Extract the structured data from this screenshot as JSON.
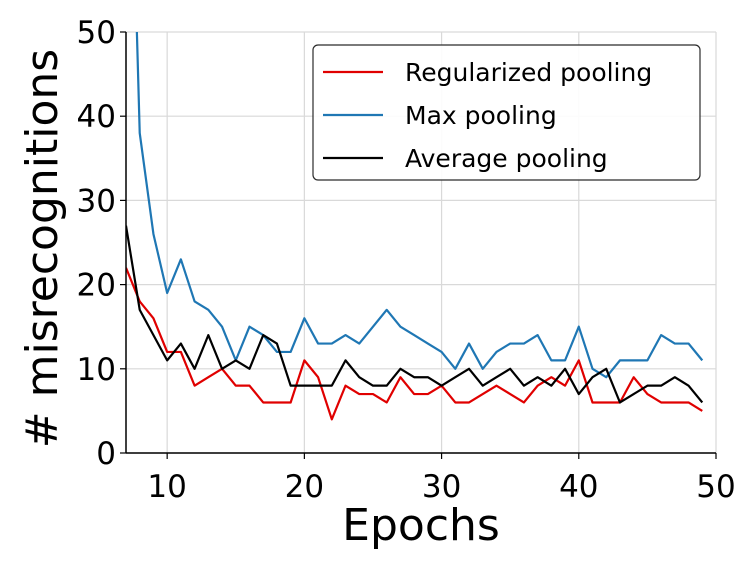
{
  "chart_data": {
    "type": "line",
    "xlabel": "Epochs",
    "ylabel": "# misrecognitions",
    "xlim": [
      7,
      50
    ],
    "ylim": [
      0,
      50
    ],
    "xticks": [
      10,
      20,
      30,
      40,
      50
    ],
    "yticks": [
      0,
      10,
      20,
      30,
      40,
      50
    ],
    "grid": true,
    "legend_position": "top-right",
    "x": [
      7,
      8,
      9,
      10,
      11,
      12,
      13,
      14,
      15,
      16,
      17,
      18,
      19,
      20,
      21,
      22,
      23,
      24,
      25,
      26,
      27,
      28,
      29,
      30,
      31,
      32,
      33,
      34,
      35,
      36,
      37,
      38,
      39,
      40,
      41,
      42,
      43,
      44,
      45,
      46,
      47,
      48,
      49
    ],
    "series": [
      {
        "name": "Regularized pooling",
        "color": "#e00000",
        "values": [
          22,
          18,
          16,
          12,
          12,
          8,
          9,
          10,
          8,
          8,
          6,
          6,
          6,
          11,
          9,
          4,
          8,
          7,
          7,
          6,
          9,
          7,
          7,
          8,
          6,
          6,
          7,
          8,
          7,
          6,
          8,
          9,
          8,
          11,
          6,
          6,
          6,
          9,
          7,
          6,
          6,
          6,
          5
        ]
      },
      {
        "name": "Max pooling",
        "color": "#1f77b4",
        "values": [
          96,
          38,
          26,
          19,
          23,
          18,
          17,
          15,
          11,
          15,
          14,
          12,
          12,
          16,
          13,
          13,
          14,
          13,
          15,
          17,
          15,
          14,
          13,
          12,
          10,
          13,
          10,
          12,
          13,
          13,
          14,
          11,
          11,
          15,
          10,
          9,
          11,
          11,
          11,
          14,
          13,
          13,
          11
        ]
      },
      {
        "name": "Average pooling",
        "color": "#000000",
        "values": [
          27,
          17,
          14,
          11,
          13,
          10,
          14,
          10,
          11,
          10,
          14,
          13,
          8,
          8,
          8,
          8,
          11,
          9,
          8,
          8,
          10,
          9,
          9,
          8,
          9,
          10,
          8,
          9,
          10,
          8,
          9,
          8,
          10,
          7,
          9,
          10,
          6,
          7,
          8,
          8,
          9,
          8,
          6
        ]
      }
    ]
  }
}
